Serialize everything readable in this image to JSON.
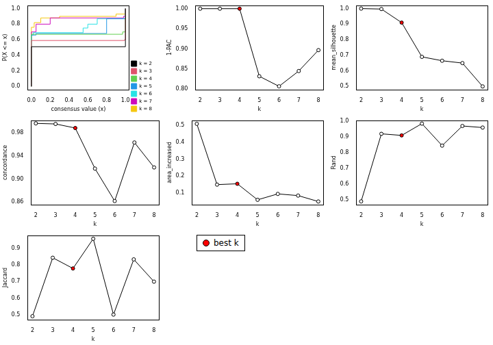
{
  "chart_data": [
    {
      "type": "line",
      "x_label": "consensus value (x)",
      "y_label": "P(X <= x)",
      "xlim": [
        -0.04,
        1.04
      ],
      "xticks": [
        {
          "value": 0,
          "label": "0.0"
        },
        {
          "value": 0.2,
          "label": "0.2"
        },
        {
          "value": 0.4,
          "label": "0.4"
        },
        {
          "value": 0.6,
          "label": "0.6"
        },
        {
          "value": 0.8,
          "label": "0.8"
        },
        {
          "value": 1,
          "label": "1.0"
        }
      ],
      "ylim": [
        -0.04,
        1.04
      ],
      "yticks": [
        {
          "value": 0,
          "label": "0.0"
        },
        {
          "value": 0.2,
          "label": "0.2"
        },
        {
          "value": 0.4,
          "label": "0.4"
        },
        {
          "value": 0.6,
          "label": "0.6"
        },
        {
          "value": 0.8,
          "label": "0.8"
        },
        {
          "value": 1,
          "label": "1.0"
        }
      ],
      "legend": "bottom right",
      "series": [
        {
          "name": "k = 2",
          "color": "#000000",
          "x": [
            0,
            0,
            1,
            1
          ],
          "values": [
            0,
            0.51,
            0.51,
            1
          ]
        },
        {
          "name": "k = 3",
          "color": "#DF536B",
          "x": [
            0,
            0,
            0.99,
            0.99,
            1,
            1
          ],
          "values": [
            0,
            0.59,
            0.59,
            0.6,
            0.6,
            1
          ]
        },
        {
          "name": "k = 4",
          "color": "#61D04F",
          "x": [
            0,
            0,
            0.97,
            0.97,
            1,
            1
          ],
          "values": [
            0,
            0.67,
            0.67,
            0.7,
            0.7,
            1
          ]
        },
        {
          "name": "k = 5",
          "color": "#2297E6",
          "x": [
            0,
            0,
            0.05,
            0.05,
            0.8,
            0.8,
            1,
            1
          ],
          "values": [
            0,
            0.66,
            0.66,
            0.68,
            0.68,
            0.87,
            0.87,
            1
          ]
        },
        {
          "name": "k = 6",
          "color": "#28E2E5",
          "x": [
            0,
            0,
            0.02,
            0.02,
            0.55,
            0.55,
            0.6,
            0.6,
            0.7,
            0.7,
            1,
            1
          ],
          "values": [
            0,
            0.66,
            0.66,
            0.69,
            0.69,
            0.75,
            0.75,
            0.8,
            0.8,
            0.87,
            0.87,
            1
          ]
        },
        {
          "name": "k = 7",
          "color": "#CD0BBC",
          "x": [
            0,
            0,
            0.05,
            0.05,
            0.2,
            0.2,
            0.98,
            0.98,
            1,
            1
          ],
          "values": [
            0,
            0.7,
            0.7,
            0.8,
            0.8,
            0.88,
            0.88,
            0.9,
            0.9,
            1
          ]
        },
        {
          "name": "k = 8",
          "color": "#F5C710",
          "x": [
            0,
            0,
            0.03,
            0.03,
            0.1,
            0.1,
            0.3,
            0.3,
            0.9,
            0.9,
            1,
            1
          ],
          "values": [
            0,
            0.76,
            0.76,
            0.82,
            0.82,
            0.88,
            0.88,
            0.9,
            0.9,
            0.93,
            0.93,
            1
          ]
        }
      ]
    },
    {
      "type": "line",
      "x_label": "k",
      "y_label": "1-PAC",
      "marker": "circle",
      "color": "#000000",
      "x": [
        2,
        3,
        4,
        5,
        6,
        7,
        8
      ],
      "values": [
        1,
        1,
        1,
        0.832,
        0.807,
        0.845,
        0.897
      ],
      "colors": [
        "#ffffff",
        "#ffffff",
        "#ff0000",
        "#ffffff",
        "#ffffff",
        "#ffffff",
        "#ffffff"
      ],
      "xlim": [
        1.76,
        8.24
      ],
      "xticks": [
        2,
        3,
        4,
        5,
        6,
        7,
        8
      ],
      "ylim": [
        0.799,
        1.008
      ],
      "yticks": [
        {
          "value": 0.8,
          "label": "0.80"
        },
        {
          "value": 0.85,
          "label": "0.85"
        },
        {
          "value": 0.9,
          "label": "0.90"
        },
        {
          "value": 0.95,
          "label": "0.95"
        },
        {
          "value": 1,
          "label": "1.00"
        }
      ]
    },
    {
      "type": "line",
      "x_label": "k",
      "y_label": "mean_silhouette",
      "marker": "circle",
      "color": "#000000",
      "x": [
        2,
        3,
        4,
        5,
        6,
        7,
        8
      ],
      "values": [
        1,
        0.997,
        0.91,
        0.69,
        0.665,
        0.65,
        0.5
      ],
      "colors": [
        "#ffffff",
        "#ffffff",
        "#ff0000",
        "#ffffff",
        "#ffffff",
        "#ffffff",
        "#ffffff"
      ],
      "xlim": [
        1.76,
        8.24
      ],
      "xticks": [
        2,
        3,
        4,
        5,
        6,
        7,
        8
      ],
      "ylim": [
        0.48,
        1.02
      ],
      "yticks": [
        0.5,
        0.6,
        0.7,
        0.8,
        0.9,
        {
          "value": 1,
          "label": "1.0"
        }
      ]
    },
    {
      "type": "line",
      "x_label": "k",
      "y_label": "concordance",
      "marker": "circle",
      "color": "#000000",
      "x": [
        2,
        3,
        4,
        5,
        6,
        7,
        8
      ],
      "values": [
        0.996,
        0.995,
        0.988,
        0.918,
        0.862,
        0.963,
        0.92
      ],
      "colors": [
        "#ffffff",
        "#ffffff",
        "#ff0000",
        "#ffffff",
        "#ffffff",
        "#ffffff",
        "#ffffff"
      ],
      "xlim": [
        1.76,
        8.24
      ],
      "xticks": [
        2,
        3,
        4,
        5,
        6,
        7,
        8
      ],
      "ylim": [
        0.856,
        1.001
      ],
      "yticks": [
        0.86,
        {
          "value": 0.9,
          "label": "0.90"
        },
        0.94,
        0.98
      ]
    },
    {
      "type": "line",
      "x_label": "k",
      "y_label": "area_increased",
      "marker": "circle",
      "color": "#000000",
      "x": [
        2,
        3,
        4,
        5,
        6,
        7,
        8
      ],
      "values": [
        0.51,
        0.15,
        0.155,
        0.06,
        0.095,
        0.085,
        0.05
      ],
      "colors": [
        "#ffffff",
        "#ffffff",
        "#ff0000",
        "#ffffff",
        "#ffffff",
        "#ffffff",
        "#ffffff"
      ],
      "xlim": [
        1.76,
        8.24
      ],
      "xticks": [
        2,
        3,
        4,
        5,
        6,
        7,
        8
      ],
      "ylim": [
        0.032,
        0.53
      ],
      "yticks": [
        0.1,
        0.2,
        0.3,
        0.4,
        0.5
      ]
    },
    {
      "type": "line",
      "x_label": "k",
      "y_label": "Rand",
      "marker": "circle",
      "color": "#000000",
      "x": [
        2,
        3,
        4,
        5,
        6,
        7,
        8
      ],
      "values": [
        0.49,
        0.92,
        0.91,
        0.985,
        0.845,
        0.97,
        0.96
      ],
      "colors": [
        "#ffffff",
        "#ffffff",
        "#ff0000",
        "#ffffff",
        "#ffffff",
        "#ffffff",
        "#ffffff"
      ],
      "xlim": [
        1.76,
        8.24
      ],
      "xticks": [
        2,
        3,
        4,
        5,
        6,
        7,
        8
      ],
      "ylim": [
        0.47,
        1.005
      ],
      "yticks": [
        0.5,
        0.6,
        0.7,
        0.8,
        0.9,
        {
          "value": 1,
          "label": "1.0"
        }
      ]
    },
    {
      "type": "line",
      "x_label": "k",
      "y_label": "Jaccard",
      "marker": "circle",
      "color": "#000000",
      "x": [
        2,
        3,
        4,
        5,
        6,
        7,
        8
      ],
      "values": [
        0.49,
        0.845,
        0.78,
        0.96,
        0.5,
        0.835,
        0.7
      ],
      "colors": [
        "#ffffff",
        "#ffffff",
        "#ff0000",
        "#ffffff",
        "#ffffff",
        "#ffffff",
        "#ffffff"
      ],
      "xlim": [
        1.76,
        8.24
      ],
      "xticks": [
        2,
        3,
        4,
        5,
        6,
        7,
        8
      ],
      "ylim": [
        0.47,
        0.98
      ],
      "yticks": [
        0.5,
        0.6,
        0.7,
        0.8,
        0.9
      ]
    }
  ],
  "legend_box": {
    "text": "best k",
    "color": "#ff0000"
  }
}
